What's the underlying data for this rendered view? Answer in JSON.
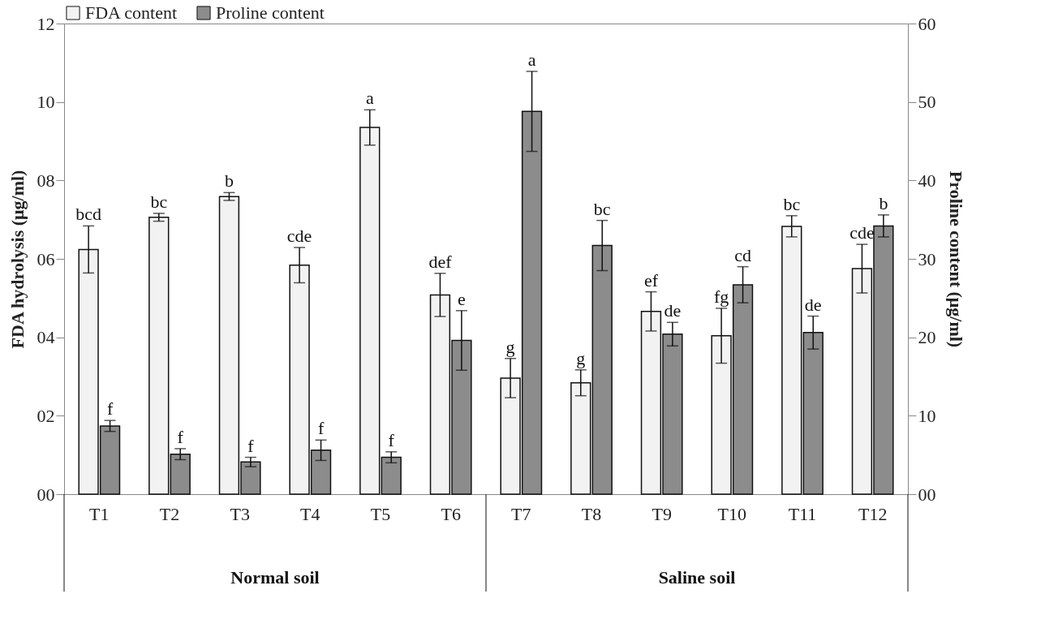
{
  "chart_data": {
    "type": "bar",
    "xlabel": null,
    "ylabel": "FDA hydrolysis (μg/ml)",
    "y2label": "Proline content (μg/ml)",
    "categories": [
      "T1",
      "T2",
      "T3",
      "T4",
      "T5",
      "T6",
      "T7",
      "T8",
      "T9",
      "T10",
      "T11",
      "T12"
    ],
    "series": [
      {
        "name": "FDA content",
        "color": "#f2f2f2",
        "values": [
          6.24,
          7.06,
          7.59,
          5.84,
          9.35,
          5.08,
          2.96,
          2.84,
          4.66,
          4.04,
          6.83,
          5.75
        ],
        "errors": [
          0.6,
          0.1,
          0.1,
          0.45,
          0.45,
          0.55,
          0.5,
          0.33,
          0.5,
          0.7,
          0.27,
          0.62
        ],
        "value_labels": [
          "bcd",
          "bc",
          "b",
          "cde",
          "a",
          "def",
          "g",
          "g",
          "ef",
          "fg",
          "bc",
          "cde"
        ]
      },
      {
        "name": "Proline content",
        "color": "#8c8c8c",
        "axis": "y2",
        "values": [
          8.7,
          5.1,
          4.1,
          5.6,
          4.7,
          19.6,
          48.8,
          31.7,
          20.4,
          26.7,
          20.6,
          34.2
        ],
        "errors": [
          0.7,
          0.7,
          0.6,
          1.3,
          0.7,
          3.8,
          5.1,
          3.2,
          1.5,
          2.3,
          2.1,
          1.4
        ],
        "value_labels": [
          "f",
          "f",
          "f",
          "f",
          "f",
          "e",
          "a",
          "bc",
          "de",
          "cd",
          "de",
          "b"
        ]
      }
    ],
    "ylim": [
      0,
      12
    ],
    "yticks": [
      {
        "value": 0,
        "label": "00"
      },
      {
        "value": 2,
        "label": "02"
      },
      {
        "value": 4,
        "label": "04"
      },
      {
        "value": 6,
        "label": "06"
      },
      {
        "value": 8,
        "label": "08"
      },
      10,
      12
    ],
    "y2lim": [
      0,
      60
    ],
    "y2ticks": [
      {
        "value": 0,
        "label": "00"
      },
      10,
      20,
      30,
      40,
      50,
      60
    ],
    "annotations": [
      "Normal soil",
      "Saline soil"
    ],
    "legend": "top",
    "grid": false
  }
}
